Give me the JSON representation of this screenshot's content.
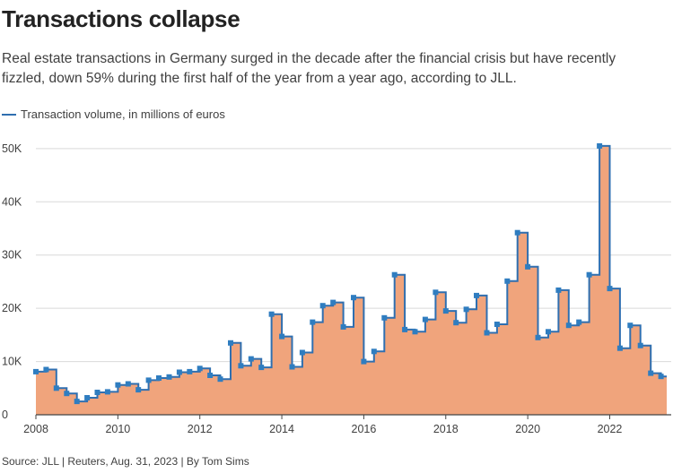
{
  "title": "Transactions collapse",
  "subtitle": "Real estate transactions in Germany surged in the decade after the financial crisis but have recently fizzled, down 59% during the first half of the year from a year ago, according to JLL.",
  "legend_label": "Transaction volume, in millions of euros",
  "source": "Source: JLL | Reuters, Aug. 31, 2023 | By Tom Sims",
  "colors": {
    "line": "#2f6fb0",
    "marker": "#2f7dc0",
    "fill": "#f0a47c",
    "grid": "#d9d9d9",
    "axis": "#444444",
    "text": "#404040"
  },
  "chart_data": {
    "type": "area",
    "title": "Transactions collapse",
    "xlabel": "",
    "ylabel": "Transaction volume, in millions of euros",
    "step": "post",
    "xlim": [
      2008,
      2023.5
    ],
    "ylim": [
      0,
      53000
    ],
    "x_ticks": [
      {
        "value": 2008,
        "label": "2008"
      },
      {
        "value": 2010,
        "label": "2010"
      },
      {
        "value": 2012,
        "label": "2012"
      },
      {
        "value": 2014,
        "label": "2014"
      },
      {
        "value": 2016,
        "label": "2016"
      },
      {
        "value": 2018,
        "label": "2018"
      },
      {
        "value": 2020,
        "label": "2020"
      },
      {
        "value": 2022,
        "label": "2022"
      }
    ],
    "y_ticks": [
      {
        "value": 0,
        "label": "0"
      },
      {
        "value": 10000,
        "label": "10K"
      },
      {
        "value": 20000,
        "label": "20K"
      },
      {
        "value": 30000,
        "label": "30K"
      },
      {
        "value": 40000,
        "label": "40K"
      },
      {
        "value": 50000,
        "label": "50K"
      }
    ],
    "series": [
      {
        "name": "Transaction volume, in millions of euros",
        "x": [
          2008.0,
          2008.25,
          2008.5,
          2008.75,
          2009.0,
          2009.25,
          2009.5,
          2009.75,
          2010.0,
          2010.25,
          2010.5,
          2010.75,
          2011.0,
          2011.25,
          2011.5,
          2011.75,
          2012.0,
          2012.25,
          2012.5,
          2012.75,
          2013.0,
          2013.25,
          2013.5,
          2013.75,
          2014.0,
          2014.25,
          2014.5,
          2014.75,
          2015.0,
          2015.25,
          2015.5,
          2015.75,
          2016.0,
          2016.25,
          2016.5,
          2016.75,
          2017.0,
          2017.25,
          2017.5,
          2017.75,
          2018.0,
          2018.25,
          2018.5,
          2018.75,
          2019.0,
          2019.25,
          2019.5,
          2019.75,
          2020.0,
          2020.25,
          2020.5,
          2020.75,
          2021.0,
          2021.25,
          2021.5,
          2021.75,
          2022.0,
          2022.25,
          2022.5,
          2022.75,
          2023.0,
          2023.25
        ],
        "values": [
          8100,
          8500,
          5000,
          4000,
          2500,
          3200,
          4200,
          4300,
          5600,
          5800,
          4700,
          6500,
          6900,
          7100,
          8000,
          8100,
          8700,
          7400,
          6700,
          13500,
          9200,
          10500,
          8900,
          18900,
          14700,
          9000,
          11700,
          17400,
          20500,
          21100,
          16500,
          22000,
          10000,
          11900,
          18200,
          26300,
          16000,
          15600,
          17900,
          23000,
          19500,
          17300,
          19800,
          22400,
          15400,
          17000,
          25100,
          34200,
          27800,
          14500,
          15600,
          23400,
          16800,
          17400,
          26300,
          50500,
          23700,
          12500,
          16800,
          13000,
          7800,
          7200
        ]
      }
    ]
  }
}
